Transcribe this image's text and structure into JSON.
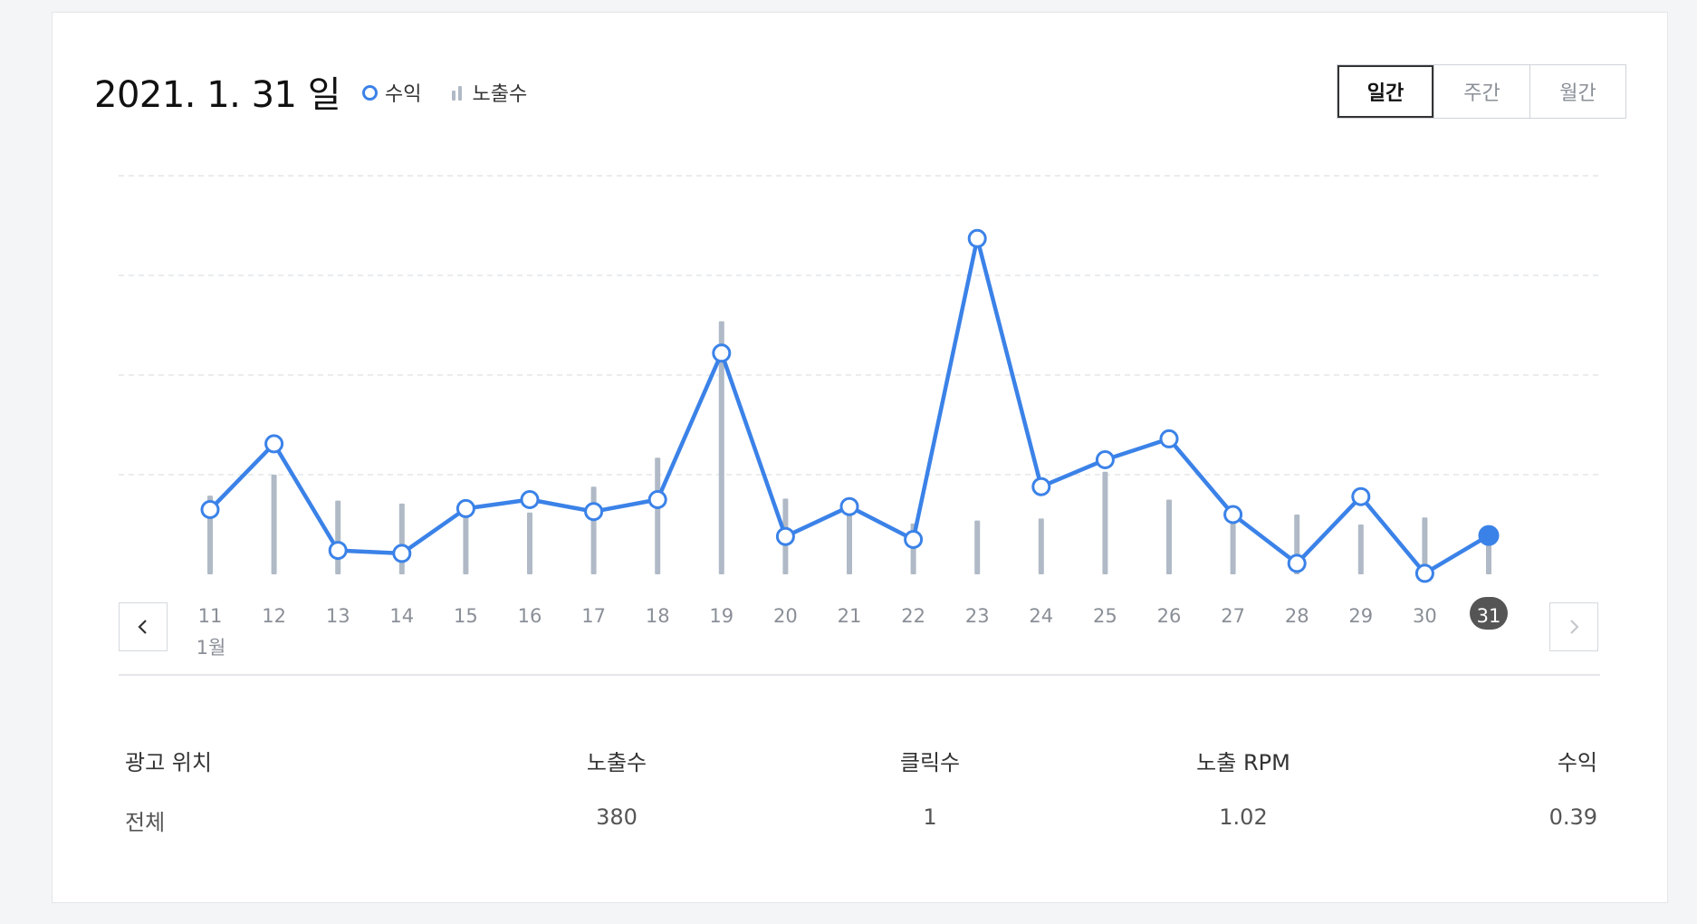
{
  "header": {
    "title": "2021. 1. 31 일",
    "legend": [
      {
        "label": "수익",
        "icon": "circle-marker-icon",
        "color": "#3b82e8"
      },
      {
        "label": "노출수",
        "icon": "bar-marker-icon",
        "color": "#b0bac6"
      }
    ]
  },
  "period_tabs": [
    {
      "label": "일간",
      "active": true
    },
    {
      "label": "주간",
      "active": false
    },
    {
      "label": "월간",
      "active": false
    }
  ],
  "chart_data": {
    "type": "line",
    "categories": [
      "11",
      "12",
      "13",
      "14",
      "15",
      "16",
      "17",
      "18",
      "19",
      "20",
      "21",
      "22",
      "23",
      "24",
      "25",
      "26",
      "27",
      "28",
      "29",
      "30",
      "31"
    ],
    "month_label": "1월",
    "selected_category": "31",
    "series": [
      {
        "name": "수익",
        "type": "line",
        "color": "#3b82e8",
        "values": [
          0.65,
          1.31,
          0.24,
          0.21,
          0.66,
          0.75,
          0.63,
          0.75,
          2.22,
          0.38,
          0.68,
          0.35,
          3.37,
          0.88,
          1.15,
          1.36,
          0.6,
          0.11,
          0.78,
          0.01,
          0.39
        ]
      },
      {
        "name": "노출수",
        "type": "bar",
        "color": "#b0bac6",
        "values": [
          790,
          1000,
          740,
          710,
          730,
          620,
          880,
          1170,
          2540,
          760,
          630,
          510,
          540,
          560,
          1030,
          750,
          640,
          600,
          500,
          570,
          380
        ]
      }
    ],
    "ylim_line": [
      0,
      4
    ],
    "ylim_bar": [
      0,
      4000
    ],
    "grid": true
  },
  "nav": {
    "prev_icon": "chevron-left-icon",
    "next_icon": "chevron-right-icon"
  },
  "table": {
    "headers": {
      "placement": "광고 위치",
      "impressions": "노출수",
      "clicks": "클릭수",
      "rpm": "노출 RPM",
      "revenue": "수익"
    },
    "rows": [
      {
        "placement": "전체",
        "impressions": "380",
        "clicks": "1",
        "rpm": "1.02",
        "revenue": "0.39"
      }
    ]
  }
}
